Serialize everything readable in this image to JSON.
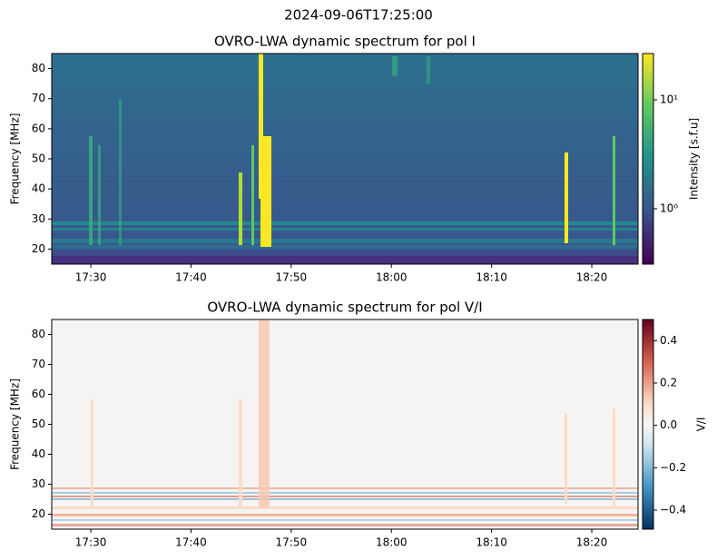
{
  "suptitle": "2024-09-06T17:25:00",
  "chart_data": [
    {
      "type": "heatmap",
      "title": "OVRO-LWA dynamic spectrum for pol I",
      "ylabel": "Frequency [MHz]",
      "xlim": [
        "17:26:06",
        "18:24:37"
      ],
      "xticks": [
        "17:30",
        "17:40",
        "17:50",
        "18:00",
        "18:10",
        "18:20"
      ],
      "ylim": [
        15,
        85
      ],
      "yticks": [
        20,
        30,
        40,
        50,
        60,
        70,
        80
      ],
      "colorbar": {
        "label": "Intensity [s.f.u]",
        "colormap": "viridis",
        "scale": "log",
        "lim": [
          0.31,
          26.6
        ],
        "ticks": [
          {
            "value": 1,
            "label": "10⁰"
          },
          {
            "value": 10,
            "label": "10¹"
          }
        ]
      }
    },
    {
      "type": "heatmap",
      "title": "OVRO-LWA dynamic spectrum for pol V/I",
      "ylabel": "Frequency [MHz]",
      "xlim": [
        "17:26:06",
        "18:24:37"
      ],
      "xticks": [
        "17:30",
        "17:40",
        "17:50",
        "18:00",
        "18:10",
        "18:20"
      ],
      "ylim": [
        15,
        85
      ],
      "yticks": [
        20,
        30,
        40,
        50,
        60,
        70,
        80
      ],
      "colorbar": {
        "label": "V/I",
        "colormap": "RdBu_r",
        "scale": "linear",
        "lim": [
          -0.49,
          0.5
        ],
        "ticks": [
          {
            "value": -0.4,
            "label": "−0.4"
          },
          {
            "value": -0.2,
            "label": "−0.2"
          },
          {
            "value": 0,
            "label": "0.0"
          },
          0.2,
          0.4
        ]
      }
    }
  ]
}
